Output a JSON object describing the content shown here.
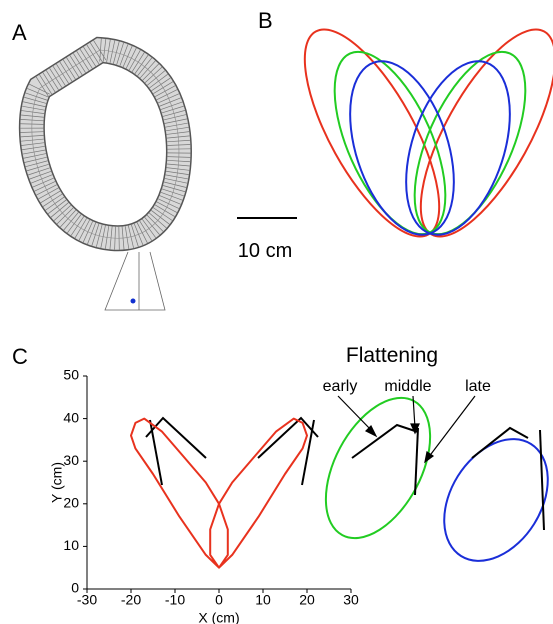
{
  "panels": {
    "a": "A",
    "b": "B",
    "c": "C"
  },
  "scale_bar": "10 cm",
  "chart_data": {
    "type": "line",
    "xlabel": "X (cm)",
    "ylabel": "Y (cm)",
    "xlim": [
      -30,
      30
    ],
    "ylim": [
      0,
      50
    ],
    "xticks": [
      -30,
      -20,
      -10,
      0,
      10,
      20,
      30
    ],
    "yticks": [
      0,
      10,
      20,
      30,
      40,
      50
    ],
    "series": [
      {
        "color": "#e8321e",
        "x": [
          0,
          -3,
          -9,
          -15,
          -19,
          -20,
          -19,
          -17,
          -13,
          -8,
          -3,
          0,
          2,
          2,
          0,
          -2,
          -2,
          0,
          3,
          8,
          13,
          17,
          19,
          20,
          19,
          15,
          9,
          3,
          0
        ],
        "y": [
          5,
          8,
          17,
          27,
          33,
          36,
          39,
          40,
          37,
          31,
          25,
          20,
          14,
          8,
          5,
          8,
          14,
          20,
          25,
          31,
          37,
          40,
          39,
          36,
          33,
          27,
          17,
          8,
          5
        ]
      }
    ],
    "annotations": {
      "title": "Flattening",
      "labels": [
        "early",
        "middle",
        "late"
      ]
    }
  }
}
